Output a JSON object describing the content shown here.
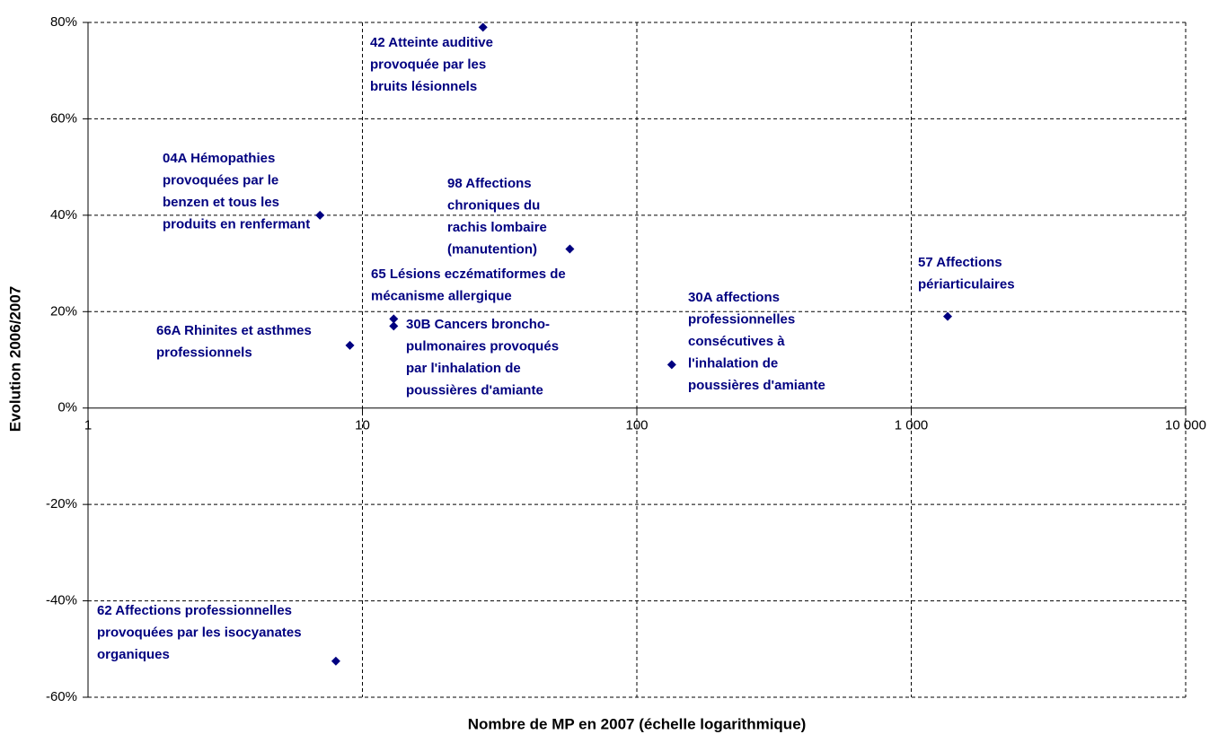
{
  "chart_data": {
    "type": "scatter",
    "x_label": "Nombre de MP en 2007 (échelle logarithmique)",
    "y_label": "Evolution 2006/2007",
    "x_log": true,
    "grid": true,
    "color": "#000080",
    "xlim": [
      1,
      10000
    ],
    "xticks": [
      1,
      10,
      100,
      {
        "value": 1000,
        "label": "1 000"
      },
      {
        "value": 10000,
        "label": "10 000"
      }
    ],
    "ylim": [
      -60,
      80
    ],
    "yticks": [
      {
        "value": -60,
        "label": "-60%"
      },
      {
        "value": -40,
        "label": "-40%"
      },
      {
        "value": -20,
        "label": "-20%"
      },
      {
        "value": 0,
        "label": "0%"
      },
      {
        "value": 20,
        "label": "20%"
      },
      {
        "value": 40,
        "label": "40%"
      },
      {
        "value": 60,
        "label": "60%"
      },
      {
        "value": 80,
        "label": "80%"
      }
    ],
    "x": [
      27.5,
      7,
      57,
      13,
      13,
      9,
      134,
      1357,
      8
    ],
    "values": [
      79,
      40,
      33,
      18.5,
      17,
      13,
      9,
      19,
      -52.5
    ],
    "point_labels": [
      [
        "42  Atteinte auditive",
        "provoquée par les",
        "bruits lésionnels"
      ],
      [
        "04A Hémopathies",
        "provoquées par le",
        "benzen et tous les",
        "produits en renfermant"
      ],
      [
        "98 Affections",
        "chroniques du",
        "rachis lombaire",
        "(manutention)"
      ],
      [
        "65 Lésions eczématiformes de",
        "mécanisme allergique"
      ],
      [
        "30B  Cancers broncho-",
        "pulmonaires provoqués",
        "par l'inhalation de",
        "poussières d'amiante"
      ],
      [
        "66A Rhinites et asthmes",
        "professionnels"
      ],
      [
        "30A affections",
        "professionnelles",
        "consécutives à",
        "l'inhalation de",
        "poussières d'amiante"
      ],
      [
        "57 Affections",
        "périarticulaires"
      ],
      [
        "62 Affections professionnelles",
        "provoquées par les isocyanates",
        "organiques"
      ]
    ]
  }
}
